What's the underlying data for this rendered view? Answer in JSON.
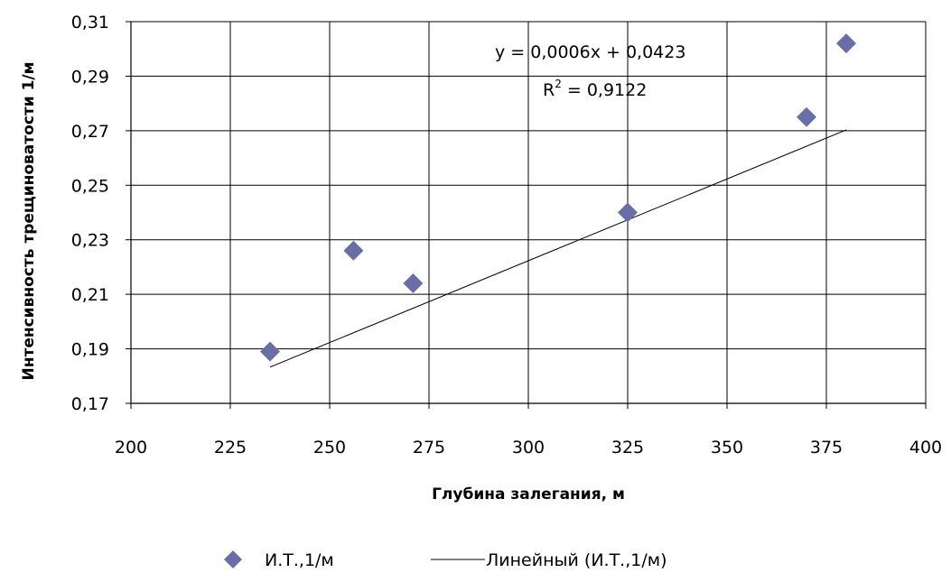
{
  "chart_data": {
    "type": "scatter",
    "xlabel": "Глубина залегания, м",
    "ylabel": "Интенсивность трещиноватости 1/м",
    "xlim": [
      200,
      400
    ],
    "ylim": [
      0.17,
      0.31
    ],
    "x_ticks": [
      200,
      225,
      250,
      275,
      300,
      325,
      350,
      375,
      400
    ],
    "y_ticks": [
      "0,17",
      "0,19",
      "0,21",
      "0,23",
      "0,25",
      "0,27",
      "0,29",
      "0,31"
    ],
    "grid": true,
    "legend_position": "bottom",
    "series": [
      {
        "name": "И.Т.,1/м",
        "marker": "diamond",
        "color": "#6a6ea6",
        "x": [
          235,
          256,
          271,
          325,
          370,
          380
        ],
        "y": [
          0.189,
          0.226,
          0.214,
          0.24,
          0.275,
          0.302
        ]
      }
    ],
    "trendline": {
      "name": "Линейный (И.Т.,1/м)",
      "slope": 0.0006,
      "intercept": 0.0423,
      "x_start": 235,
      "x_end": 380,
      "equation": "y = 0,0006x + 0,0423",
      "r2_prefix": "R",
      "r2_sup": "2",
      "r2_value": " = 0,9122",
      "color": "#000000"
    }
  }
}
